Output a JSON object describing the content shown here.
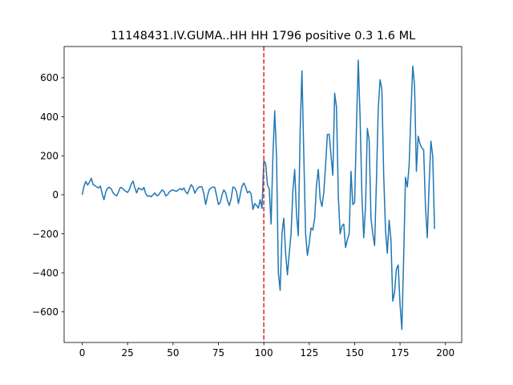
{
  "chart_data": {
    "type": "line",
    "title": "11148431.IV.GUMA..HH HH 1796 positive 0.3 1.6 ML",
    "xlabel": "",
    "ylabel": "",
    "xlim": [
      -9.95,
      208.95
    ],
    "ylim": [
      -757,
      760
    ],
    "xticks": [
      0,
      25,
      50,
      75,
      100,
      125,
      150,
      175,
      200
    ],
    "yticks": [
      -600,
      -400,
      -200,
      0,
      200,
      400,
      600
    ],
    "grid": false,
    "series_color": "#1f77b4",
    "marker_line": {
      "x": 100,
      "color": "#d62728",
      "style": "dashed"
    },
    "series": [
      {
        "values": [
          0,
          45,
          68,
          50,
          65,
          85,
          52,
          48,
          40,
          35,
          45,
          5,
          -25,
          15,
          35,
          38,
          30,
          10,
          0,
          -5,
          15,
          38,
          35,
          25,
          18,
          12,
          28,
          55,
          70,
          35,
          10,
          35,
          30,
          25,
          38,
          5,
          -8,
          -5,
          -10,
          0,
          10,
          -5,
          -2,
          12,
          25,
          18,
          -5,
          0,
          15,
          22,
          25,
          20,
          18,
          25,
          32,
          25,
          35,
          15,
          5,
          30,
          52,
          40,
          8,
          25,
          38,
          42,
          40,
          5,
          -50,
          -5,
          28,
          35,
          40,
          38,
          -5,
          -50,
          -40,
          0,
          25,
          10,
          -30,
          -55,
          -20,
          40,
          35,
          15,
          -45,
          0,
          45,
          60,
          40,
          10,
          18,
          5,
          -75,
          -45,
          -55,
          -68,
          -25,
          -70,
          175,
          160,
          50,
          30,
          -150,
          200,
          430,
          200,
          -400,
          -490,
          -200,
          -120,
          -300,
          -410,
          -300,
          -200,
          20,
          130,
          -100,
          -210,
          330,
          635,
          210,
          -200,
          -310,
          -250,
          -170,
          -180,
          -120,
          50,
          130,
          -20,
          -60,
          10,
          150,
          310,
          310,
          200,
          100,
          520,
          450,
          0,
          -200,
          -160,
          -150,
          -270,
          -230,
          -200,
          120,
          -50,
          -40,
          350,
          690,
          400,
          0,
          -220,
          -60,
          340,
          280,
          -120,
          -200,
          -260,
          70,
          440,
          590,
          540,
          100,
          -180,
          -300,
          -130,
          -230,
          -545,
          -500,
          -380,
          -360,
          -560,
          -690,
          -320,
          90,
          40,
          150,
          420,
          660,
          560,
          120,
          300,
          260,
          240,
          230,
          -60,
          -220,
          50,
          275,
          200,
          -175
        ]
      }
    ]
  }
}
